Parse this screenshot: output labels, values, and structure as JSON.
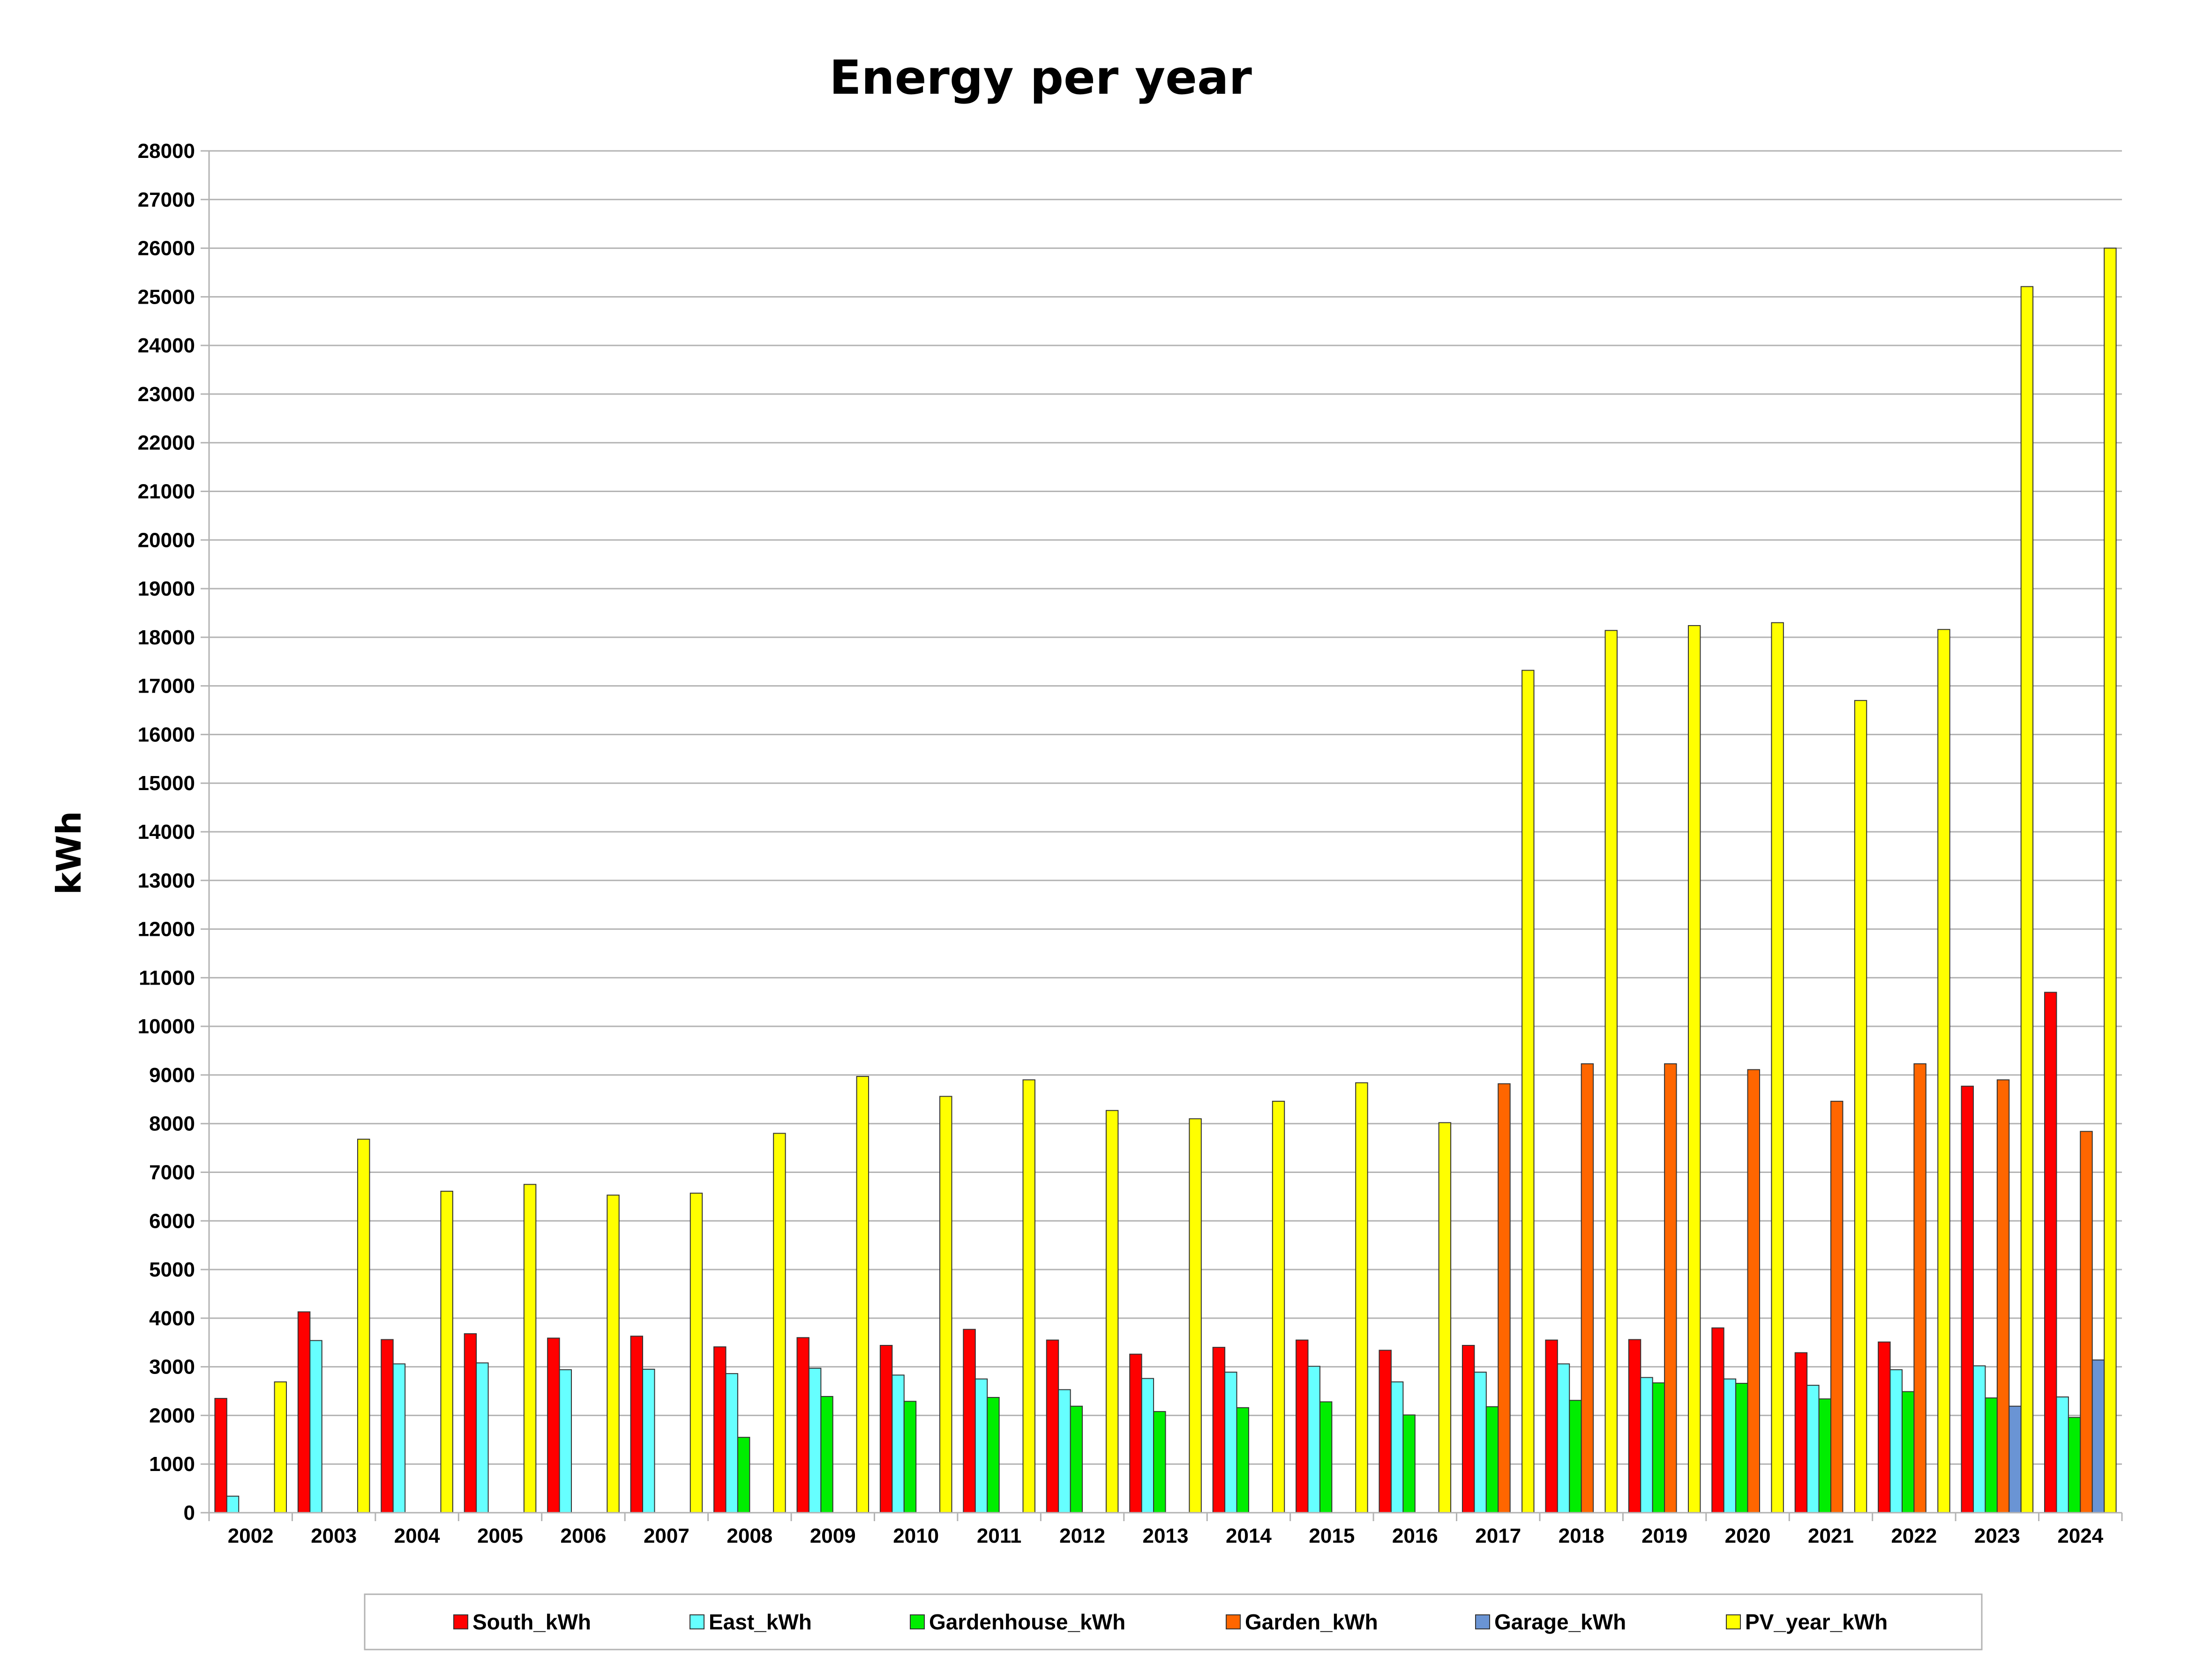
{
  "chart_data": {
    "type": "bar",
    "title": "Energy per year",
    "xlabel": "",
    "ylabel": "kWh",
    "ylim": [
      0,
      28000
    ],
    "ytick_step": 1000,
    "grid": true,
    "legend_position": "bottom",
    "categories": [
      "2002",
      "2003",
      "2004",
      "2005",
      "2006",
      "2007",
      "2008",
      "2009",
      "2010",
      "2011",
      "2012",
      "2013",
      "2014",
      "2015",
      "2016",
      "2017",
      "2018",
      "2019",
      "2020",
      "2021",
      "2022",
      "2023",
      "2024"
    ],
    "series": [
      {
        "name": "South_kWh",
        "color": "#ff0000",
        "values": [
          2350,
          4130,
          3560,
          3680,
          3590,
          3630,
          3410,
          3600,
          3440,
          3770,
          3550,
          3260,
          3400,
          3550,
          3340,
          3440,
          3550,
          3560,
          3800,
          3290,
          3510,
          8770,
          10700
        ]
      },
      {
        "name": "East_kWh",
        "color": "#66ffff",
        "values": [
          340,
          3540,
          3060,
          3080,
          2940,
          2950,
          2860,
          2970,
          2830,
          2750,
          2530,
          2760,
          2890,
          3010,
          2690,
          2890,
          3060,
          2780,
          2750,
          2620,
          2940,
          3020,
          2380
        ]
      },
      {
        "name": "Gardenhouse_kWh",
        "color": "#00ee00",
        "values": [
          null,
          null,
          null,
          null,
          null,
          null,
          1550,
          2390,
          2290,
          2370,
          2190,
          2080,
          2160,
          2280,
          2010,
          2180,
          2310,
          2670,
          2660,
          2340,
          2490,
          2360,
          1960
        ]
      },
      {
        "name": "Garden_kWh",
        "color": "#ff6600",
        "values": [
          null,
          null,
          null,
          null,
          null,
          null,
          null,
          null,
          null,
          null,
          null,
          null,
          null,
          null,
          null,
          8820,
          9230,
          9230,
          9110,
          8460,
          9230,
          8900,
          7840
        ]
      },
      {
        "name": "Garage_kWh",
        "color": "#6a94d4",
        "values": [
          null,
          null,
          null,
          null,
          null,
          null,
          null,
          null,
          null,
          null,
          null,
          null,
          null,
          null,
          null,
          null,
          null,
          null,
          null,
          null,
          null,
          2190,
          3140
        ]
      },
      {
        "name": "PV_year_kWh",
        "color": "#ffff00",
        "values": [
          2690,
          7680,
          6610,
          6750,
          6530,
          6570,
          7800,
          8970,
          8560,
          8900,
          8270,
          8100,
          8460,
          8840,
          8020,
          17320,
          18140,
          18240,
          18300,
          16700,
          18160,
          25210,
          26000
        ]
      }
    ]
  }
}
